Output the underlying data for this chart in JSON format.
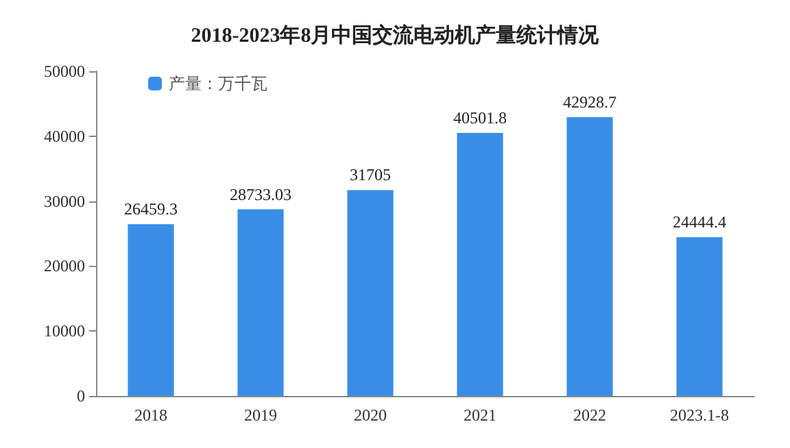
{
  "chart_data": {
    "type": "bar",
    "title": "2018-2023年8月中国交流电动机产量统计情况",
    "categories": [
      "2018",
      "2019",
      "2020",
      "2021",
      "2022",
      "2023.1-8"
    ],
    "series": [
      {
        "name": "产量：万千瓦",
        "color": "#3a8ee6",
        "values": [
          26459.3,
          28733.03,
          31705,
          40501.8,
          42928.7,
          24444.4
        ]
      }
    ],
    "ylim": [
      0,
      50000
    ],
    "yticks": [
      0,
      10000,
      20000,
      30000,
      40000,
      50000
    ],
    "grid": false,
    "legend": "top left",
    "data_labels": true
  }
}
